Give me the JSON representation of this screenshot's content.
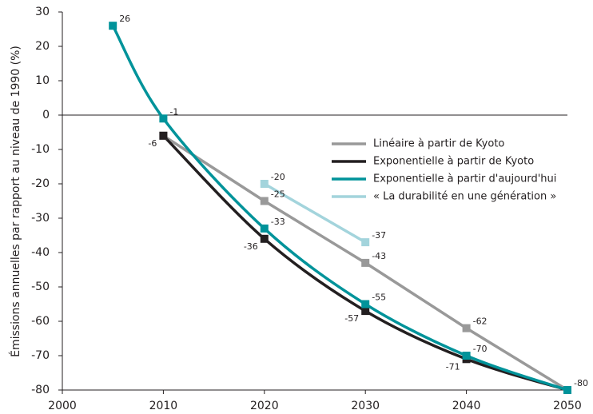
{
  "chart_data": {
    "type": "line",
    "ylabel": "Émissions annuelles par rapport au niveau de 1990 (%)",
    "x": [
      2005,
      2010,
      2020,
      2030,
      2040,
      2050
    ],
    "xlim": [
      2000,
      2050
    ],
    "xticks": [
      2000,
      2010,
      2020,
      2030,
      2040,
      2050
    ],
    "ylim": [
      -80,
      30
    ],
    "yticks": [
      30,
      20,
      10,
      0,
      -10,
      -20,
      -30,
      -40,
      -50,
      -60,
      -70,
      -80
    ],
    "zero_line": true,
    "legend": "right",
    "series": [
      {
        "name": "Linéaire à partir de Kyoto",
        "color": "#999999",
        "curve": "linear",
        "values": [
          null,
          -6,
          -25,
          -43,
          -62,
          -80
        ],
        "value_labels": [
          null,
          null,
          "-25",
          "-43",
          "-62",
          "-80"
        ]
      },
      {
        "name": "Exponentielle à partir de Kyoto",
        "color": "#231f20",
        "curve": "smooth",
        "values": [
          null,
          -6,
          -36,
          -57,
          -71,
          -80
        ],
        "value_labels": [
          null,
          "-6",
          "-36",
          "-57",
          "-71",
          null
        ]
      },
      {
        "name": "Exponentielle à partir d'aujourd'hui",
        "color": "#00939a",
        "curve": "smooth",
        "values": [
          26,
          -1,
          -33,
          -55,
          -70,
          -80
        ],
        "value_labels": [
          "26",
          "-1",
          "-33",
          "-55",
          "-70",
          null
        ]
      },
      {
        "name": "« La durabilité en une génération »",
        "color": "#a3d4dc",
        "curve": "linear",
        "values": [
          null,
          null,
          -20,
          -37,
          null,
          null
        ],
        "value_labels": [
          null,
          null,
          "-20",
          "-37",
          null,
          null
        ]
      }
    ]
  }
}
